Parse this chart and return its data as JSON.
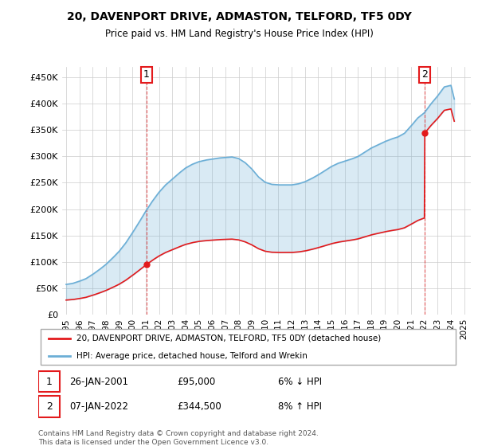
{
  "title": "20, DAVENPORT DRIVE, ADMASTON, TELFORD, TF5 0DY",
  "subtitle": "Price paid vs. HM Land Registry's House Price Index (HPI)",
  "ylabel_ticks": [
    "£0",
    "£50K",
    "£100K",
    "£150K",
    "£200K",
    "£250K",
    "£300K",
    "£350K",
    "£400K",
    "£450K"
  ],
  "ytick_vals": [
    0,
    50000,
    100000,
    150000,
    200000,
    250000,
    300000,
    350000,
    400000,
    450000
  ],
  "ylim": [
    0,
    470000
  ],
  "xlim_start": 1995.0,
  "xlim_end": 2025.5,
  "xtick_labels": [
    "1995",
    "1996",
    "1997",
    "1998",
    "1999",
    "2000",
    "2001",
    "2002",
    "2003",
    "2004",
    "2005",
    "2006",
    "2007",
    "2008",
    "2009",
    "2010",
    "2011",
    "2012",
    "2013",
    "2014",
    "2015",
    "2016",
    "2017",
    "2018",
    "2019",
    "2020",
    "2021",
    "2022",
    "2023",
    "2024",
    "2025"
  ],
  "xtick_vals": [
    1995,
    1996,
    1997,
    1998,
    1999,
    2000,
    2001,
    2002,
    2003,
    2004,
    2005,
    2006,
    2007,
    2008,
    2009,
    2010,
    2011,
    2012,
    2013,
    2014,
    2015,
    2016,
    2017,
    2018,
    2019,
    2020,
    2021,
    2022,
    2023,
    2024,
    2025
  ],
  "hpi_color": "#6baed6",
  "price_color": "#e31a1c",
  "annotation_box_color": "#e31a1c",
  "legend_label_price": "20, DAVENPORT DRIVE, ADMASTON, TELFORD, TF5 0DY (detached house)",
  "legend_label_hpi": "HPI: Average price, detached house, Telford and Wrekin",
  "note1_date": "26-JAN-2001",
  "note1_price": "£95,000",
  "note1_hpi": "6% ↓ HPI",
  "note2_date": "07-JAN-2022",
  "note2_price": "£344,500",
  "note2_hpi": "8% ↑ HPI",
  "footer": "Contains HM Land Registry data © Crown copyright and database right 2024.\nThis data is licensed under the Open Government Licence v3.0.",
  "background_color": "#ffffff",
  "grid_color": "#cccccc",
  "sale1_x": 2001.07,
  "sale1_y": 95000,
  "sale2_x": 2022.03,
  "sale2_y": 344500
}
